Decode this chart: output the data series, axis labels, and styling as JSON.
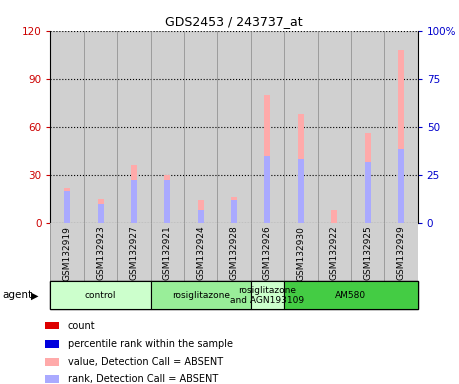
{
  "title": "GDS2453 / 243737_at",
  "samples": [
    "GSM132919",
    "GSM132923",
    "GSM132927",
    "GSM132921",
    "GSM132924",
    "GSM132928",
    "GSM132926",
    "GSM132930",
    "GSM132922",
    "GSM132925",
    "GSM132929"
  ],
  "pink_bars": [
    22,
    15,
    36,
    30,
    14,
    16,
    80,
    68,
    8,
    56,
    108
  ],
  "blue_bars": [
    20,
    12,
    27,
    27,
    8,
    14,
    42,
    40,
    0,
    38,
    46
  ],
  "ylim_left": [
    0,
    120
  ],
  "ylim_right": [
    0,
    100
  ],
  "yticks_left": [
    0,
    30,
    60,
    90,
    120
  ],
  "yticks_right": [
    0,
    25,
    50,
    75,
    100
  ],
  "ytick_labels_left": [
    "0",
    "30",
    "60",
    "90",
    "120"
  ],
  "ytick_labels_right": [
    "0",
    "25",
    "50",
    "75",
    "100%"
  ],
  "agent_groups": [
    {
      "label": "control",
      "start": 0,
      "end": 3,
      "color": "#ccffcc"
    },
    {
      "label": "rosiglitazone",
      "start": 3,
      "end": 6,
      "color": "#99ee99"
    },
    {
      "label": "rosiglitazone\nand AGN193109",
      "start": 6,
      "end": 7,
      "color": "#ccffcc"
    },
    {
      "label": "AM580",
      "start": 7,
      "end": 11,
      "color": "#44cc44"
    }
  ],
  "bar_width": 0.18,
  "pink_color": "#ffaaaa",
  "blue_color": "#aaaaff",
  "col_bg_color": "#d0d0d0",
  "plot_bg": "#ffffff",
  "legend_items": [
    {
      "color": "#dd0000",
      "label": "count"
    },
    {
      "color": "#0000dd",
      "label": "percentile rank within the sample"
    },
    {
      "color": "#ffaaaa",
      "label": "value, Detection Call = ABSENT"
    },
    {
      "color": "#aaaaff",
      "label": "rank, Detection Call = ABSENT"
    }
  ],
  "grid_color": "#000000",
  "left_tick_color": "#cc0000",
  "right_tick_color": "#0000cc"
}
